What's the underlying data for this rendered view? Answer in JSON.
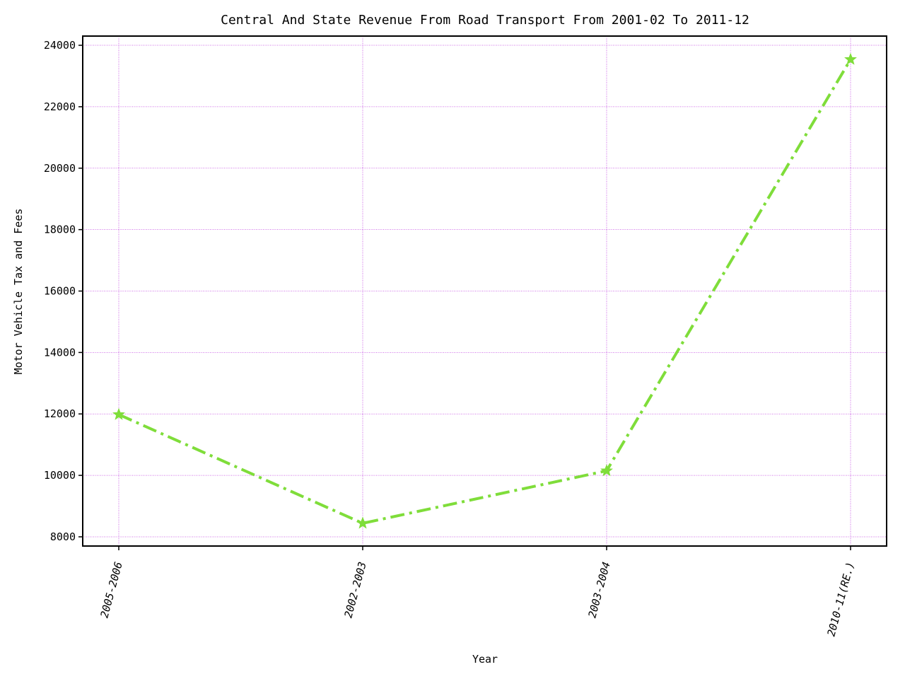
{
  "chart_data": {
    "type": "line",
    "title": "Central And State Revenue From Road Transport From 2001-02 To 2011-12",
    "xlabel": "Year",
    "ylabel": "Motor Vehicle Tax and Fees",
    "categories": [
      "2005-2006",
      "2002-2003",
      "2003-2004",
      "2010-11(RE.)"
    ],
    "series": [
      {
        "values": [
          11980,
          8440,
          10150,
          23540
        ]
      }
    ],
    "ylim": [
      7700,
      24300
    ],
    "yticks": [
      8000,
      10000,
      12000,
      14000,
      16000,
      18000,
      20000,
      22000,
      24000
    ],
    "grid": true,
    "colors": {
      "line": "#7fdd3a",
      "grid": "#c040e0",
      "axes": "#000000"
    },
    "line_style": "dash-dot",
    "marker": "star"
  }
}
